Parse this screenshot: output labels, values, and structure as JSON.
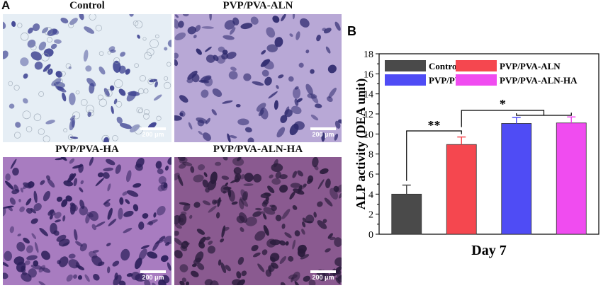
{
  "panel_a": {
    "letter": "A",
    "images": [
      {
        "title": "Control",
        "scalebar": "200 μm",
        "bg": "#e6eef5",
        "stain": "#3a3f8f",
        "density": 70
      },
      {
        "title": "PVP/PVA-ALN",
        "scalebar": "200 μm",
        "bg": "#b8a8d6",
        "stain": "#2e2a6e",
        "density": 110
      },
      {
        "title": "PVP/PVA-HA",
        "scalebar": "200 μm",
        "bg": "#a87cc0",
        "stain": "#2c1f5a",
        "density": 170
      },
      {
        "title": "PVP/PVA-ALN-HA",
        "scalebar": "200 μm",
        "bg": "#8a5a90",
        "stain": "#2a1c3c",
        "density": 190
      }
    ]
  },
  "panel_b": {
    "letter": "B",
    "chart_data": {
      "type": "bar",
      "categories": [
        "Control",
        "PVP/PVA-ALN",
        "PVP/PVA-HA",
        "PVP/PVA-ALN-HA"
      ],
      "values": [
        4.0,
        8.95,
        11.05,
        11.1
      ],
      "errors": [
        0.9,
        0.75,
        0.6,
        0.6
      ],
      "colors": [
        "#4a4a4a",
        "#f5474f",
        "#4f4cf5",
        "#f04cf0"
      ],
      "xlabel": "Day 7",
      "ylabel": "ALP activity (DEA unit)",
      "ylim": [
        0,
        18
      ],
      "yticks": [
        "0",
        "2",
        "4",
        "6",
        "8",
        "10",
        "12",
        "14",
        "16",
        "18"
      ],
      "legend": [
        "Control",
        "PVP/PVA-ALN",
        "PVP/PVA-HA",
        "PVP/PVA-ALN-HA"
      ],
      "legend_placement": "top",
      "significance": [
        {
          "label": "**",
          "from": 0,
          "to": 1
        },
        {
          "label": "*",
          "from": 1,
          "to": [
            2,
            3
          ]
        }
      ],
      "grid": false
    }
  }
}
